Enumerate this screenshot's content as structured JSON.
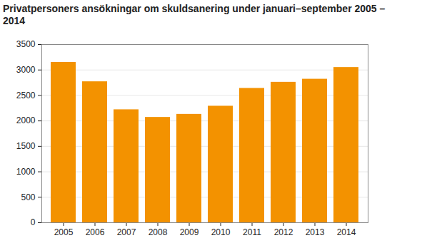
{
  "chart_data": {
    "type": "bar",
    "title": "Privatpersoners ansökningar om skuldsanering under januari–september 2005 –2014",
    "categories": [
      "2005",
      "2006",
      "2007",
      "2008",
      "2009",
      "2010",
      "2011",
      "2012",
      "2013",
      "2014"
    ],
    "values": [
      3150,
      2770,
      2220,
      2070,
      2130,
      2290,
      2640,
      2760,
      2820,
      3050
    ],
    "color": "#f39200",
    "ylim": [
      0,
      3500
    ],
    "yticks": [
      0,
      500,
      1000,
      1500,
      2000,
      2500,
      3000,
      3500
    ],
    "grid": true
  }
}
